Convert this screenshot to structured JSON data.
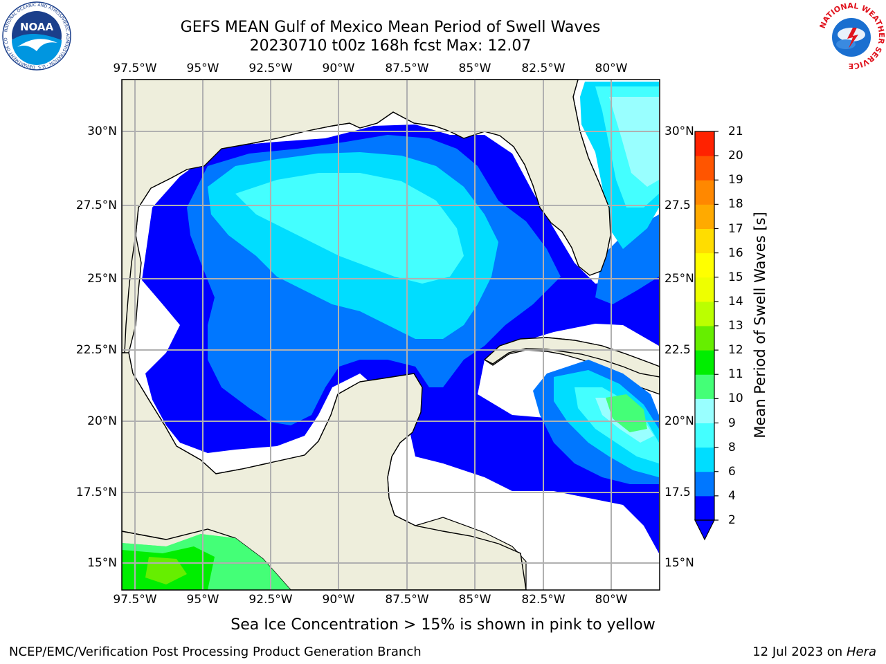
{
  "header": {
    "title_line1": "GEFS MEAN Gulf of Mexico Mean Period of Swell Waves",
    "title_line2": "20230710 t00z 168h fcst   Max: 12.07"
  },
  "axes": {
    "lon_labels": [
      "97.5°W",
      "95°W",
      "92.5°W",
      "90°W",
      "87.5°W",
      "85°W",
      "82.5°W",
      "80°W"
    ],
    "lat_labels": [
      "30°N",
      "27.5°N",
      "25°N",
      "22.5°N",
      "20°N",
      "17.5°N",
      "15°N"
    ],
    "lat_labels_right": [
      "30°N",
      "27.5",
      "25°N",
      "22.5",
      "20°N",
      "17.5",
      "15°N"
    ]
  },
  "colorbar": {
    "title": "Mean Period of Swell Waves [s]",
    "ticks": [
      "2",
      "4",
      "6",
      "8",
      "9",
      "10",
      "11",
      "12",
      "13",
      "14",
      "15",
      "16",
      "17",
      "18",
      "19",
      "20",
      "21"
    ],
    "colors": [
      "#0000ff",
      "#0077ff",
      "#00ddff",
      "#44ffff",
      "#99ffff",
      "#44ff77",
      "#00ee00",
      "#66ee00",
      "#bbff00",
      "#eeff00",
      "#ffff00",
      "#ffdd00",
      "#ffaa00",
      "#ff8800",
      "#ff5500",
      "#ff2200",
      "#ff0000"
    ]
  },
  "chart_data": {
    "type": "heatmap",
    "variable": "Mean Period of Swell Waves [s]",
    "max_value": 12.07,
    "lon_range": [
      -98.0,
      -78.0
    ],
    "lat_range": [
      14.0,
      32.0
    ],
    "regions": [
      {
        "area": "central Gulf of Mexico",
        "value_range": [
          6,
          9
        ]
      },
      {
        "area": "western and southern Gulf",
        "value_range": [
          2,
          4
        ]
      },
      {
        "area": "Atlantic east of Florida",
        "value_range": [
          6,
          9
        ]
      },
      {
        "area": "Caribbean south of Cuba",
        "value_range": [
          6,
          10
        ]
      },
      {
        "area": "eastern Pacific off Mexico",
        "value_range": [
          9,
          12
        ]
      }
    ]
  },
  "footer": {
    "note": "Sea Ice Concentration > 15% is shown in pink to yellow",
    "credit": "NCEP/EMC/Verification Post Processing Product Generation Branch",
    "date_prefix": "12 Jul 2023 on",
    "machine": "Hera"
  },
  "logos": {
    "noaa_text": "NOAA",
    "noaa_ring": "NATIONAL OCEANIC AND ATMOSPHERIC ADMINISTRATION · U.S. DEPARTMENT OF COMMERCE",
    "nws_ring": "NATIONAL WEATHER SERVICE"
  }
}
